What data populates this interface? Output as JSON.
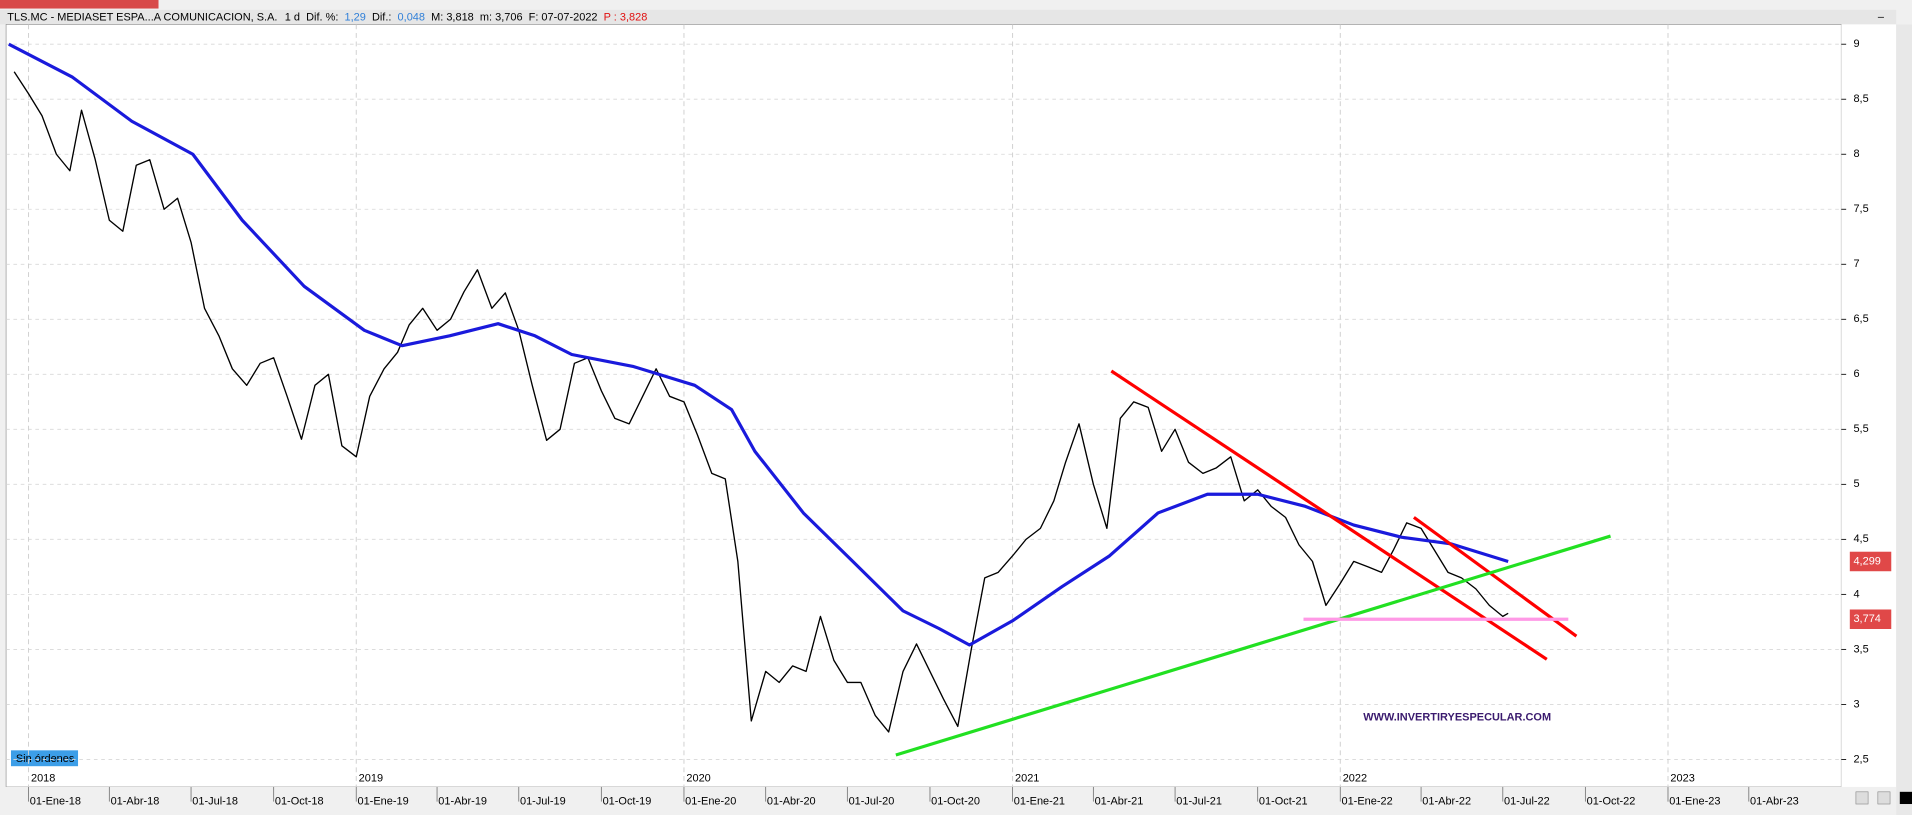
{
  "chart_data": {
    "type": "line",
    "title": "TLS.MC - MEDIASET ESPA...A COMUNICACION, S.A.",
    "info": [
      {
        "text": "1 d",
        "color": "#000000"
      },
      {
        "text": "Dif. %:",
        "color": "#000000"
      },
      {
        "text": "1,29",
        "color": "#2f7fd8"
      },
      {
        "text": "Dif.:",
        "color": "#000000"
      },
      {
        "text": "0,048",
        "color": "#2f7fd8"
      },
      {
        "text": "M: 3,818",
        "color": "#000000"
      },
      {
        "text": "m: 3,706",
        "color": "#000000"
      },
      {
        "text": "F: 07-07-2022",
        "color": "#000000"
      },
      {
        "text": "P : 3,828",
        "color": "#e01010"
      }
    ],
    "watermark": "WWW.INVERTIRYESPECULAR.COM",
    "status": "Sin órdenes",
    "xlim": [
      "2017-12-07",
      "2023-07-13"
    ],
    "ylim": [
      2.25,
      9.18
    ],
    "yticks": [
      {
        "value": 2.5,
        "label": "2,5"
      },
      3,
      {
        "value": 3.5,
        "label": "3,5"
      },
      4,
      {
        "value": 4.5,
        "label": "4,5"
      },
      5,
      {
        "value": 5.5,
        "label": "5,5"
      },
      6,
      {
        "value": 6.5,
        "label": "6,5"
      },
      7,
      {
        "value": 7.5,
        "label": "7,5"
      },
      8,
      {
        "value": 8.5,
        "label": "8,5"
      },
      9
    ],
    "xticks": [
      {
        "value": "2018-01-01",
        "label": "01-Ene-18"
      },
      {
        "value": "2018-04-01",
        "label": "01-Abr-18"
      },
      {
        "value": "2018-07-01",
        "label": "01-Jul-18"
      },
      {
        "value": "2018-10-01",
        "label": "01-Oct-18"
      },
      {
        "value": "2019-01-01",
        "label": "01-Ene-19"
      },
      {
        "value": "2019-04-01",
        "label": "01-Abr-19"
      },
      {
        "value": "2019-07-01",
        "label": "01-Jul-19"
      },
      {
        "value": "2019-10-01",
        "label": "01-Oct-19"
      },
      {
        "value": "2020-01-01",
        "label": "01-Ene-20"
      },
      {
        "value": "2020-04-01",
        "label": "01-Abr-20"
      },
      {
        "value": "2020-07-01",
        "label": "01-Jul-20"
      },
      {
        "value": "2020-10-01",
        "label": "01-Oct-20"
      },
      {
        "value": "2021-01-01",
        "label": "01-Ene-21"
      },
      {
        "value": "2021-04-01",
        "label": "01-Abr-21"
      },
      {
        "value": "2021-07-01",
        "label": "01-Jul-21"
      },
      {
        "value": "2021-10-01",
        "label": "01-Oct-21"
      },
      {
        "value": "2022-01-01",
        "label": "01-Ene-22"
      },
      {
        "value": "2022-04-01",
        "label": "01-Abr-22"
      },
      {
        "value": "2022-07-01",
        "label": "01-Jul-22"
      },
      {
        "value": "2022-10-01",
        "label": "01-Oct-22"
      },
      {
        "value": "2023-01-01",
        "label": "01-Ene-23"
      },
      {
        "value": "2023-04-01",
        "label": "01-Abr-23"
      }
    ],
    "year_ticks": [
      {
        "value": "2018-01-01",
        "label": "2018"
      },
      {
        "value": "2019-01-01",
        "label": "2019"
      },
      {
        "value": "2020-01-01",
        "label": "2020"
      },
      {
        "value": "2021-01-01",
        "label": "2021"
      },
      {
        "value": "2022-01-01",
        "label": "2022"
      },
      {
        "value": "2023-01-01",
        "label": "2023"
      }
    ],
    "grid": true,
    "series": [
      {
        "color": "#000000",
        "x": [
          "2017-12-16",
          "2018-01-01",
          "2018-01-16",
          "2018-02-01",
          "2018-02-16",
          "2018-03-01",
          "2018-03-16",
          "2018-04-01",
          "2018-04-16",
          "2018-05-01",
          "2018-05-16",
          "2018-06-01",
          "2018-06-16",
          "2018-07-01",
          "2018-07-16",
          "2018-08-01",
          "2018-08-16",
          "2018-09-01",
          "2018-09-16",
          "2018-10-01",
          "2018-10-16",
          "2018-11-01",
          "2018-11-16",
          "2018-12-01",
          "2018-12-16",
          "2019-01-01",
          "2019-01-16",
          "2019-02-01",
          "2019-02-16",
          "2019-03-01",
          "2019-03-16",
          "2019-04-01",
          "2019-04-16",
          "2019-05-01",
          "2019-05-16",
          "2019-06-01",
          "2019-06-16",
          "2019-07-01",
          "2019-07-16",
          "2019-08-01",
          "2019-08-16",
          "2019-09-01",
          "2019-09-16",
          "2019-10-01",
          "2019-10-16",
          "2019-11-01",
          "2019-11-16",
          "2019-12-01",
          "2019-12-16",
          "2020-01-01",
          "2020-01-16",
          "2020-02-01",
          "2020-02-16",
          "2020-03-01",
          "2020-03-16",
          "2020-04-01",
          "2020-04-16",
          "2020-05-01",
          "2020-05-16",
          "2020-06-01",
          "2020-06-16",
          "2020-07-01",
          "2020-07-16",
          "2020-08-01",
          "2020-08-16",
          "2020-09-01",
          "2020-09-16",
          "2020-10-01",
          "2020-10-16",
          "2020-11-01",
          "2020-11-16",
          "2020-12-01",
          "2020-12-16",
          "2021-01-01",
          "2021-01-16",
          "2021-02-01",
          "2021-02-16",
          "2021-03-01",
          "2021-03-16",
          "2021-04-01",
          "2021-04-16",
          "2021-05-01",
          "2021-05-16",
          "2021-06-01",
          "2021-06-16",
          "2021-07-01",
          "2021-07-16",
          "2021-08-01",
          "2021-08-16",
          "2021-09-01",
          "2021-09-16",
          "2021-10-01",
          "2021-10-16",
          "2021-11-01",
          "2021-11-16",
          "2021-12-01",
          "2021-12-16",
          "2022-01-01",
          "2022-01-16",
          "2022-02-01",
          "2022-02-16",
          "2022-03-01",
          "2022-03-16",
          "2022-04-01",
          "2022-04-16",
          "2022-05-01",
          "2022-05-16",
          "2022-06-01",
          "2022-06-16",
          "2022-07-01",
          "2022-07-07"
        ],
        "values": [
          8.75,
          8.55,
          8.35,
          8.0,
          7.85,
          8.4,
          7.96,
          7.4,
          7.3,
          7.9,
          7.95,
          7.5,
          7.6,
          7.2,
          6.6,
          6.35,
          6.05,
          5.9,
          6.1,
          6.15,
          5.8,
          5.41,
          5.9,
          6.0,
          5.35,
          5.25,
          5.8,
          6.05,
          6.2,
          6.45,
          6.6,
          6.4,
          6.5,
          6.75,
          6.95,
          6.6,
          6.74,
          6.4,
          5.9,
          5.4,
          5.5,
          6.1,
          6.15,
          5.85,
          5.6,
          5.55,
          5.8,
          6.05,
          5.8,
          5.75,
          5.45,
          5.1,
          5.05,
          4.3,
          2.85,
          3.3,
          3.2,
          3.35,
          3.3,
          3.8,
          3.4,
          3.2,
          3.2,
          2.9,
          2.75,
          3.3,
          3.55,
          3.3,
          3.05,
          2.8,
          3.5,
          4.15,
          4.2,
          4.35,
          4.5,
          4.6,
          4.85,
          5.2,
          5.55,
          5.0,
          4.6,
          5.6,
          5.75,
          5.7,
          5.3,
          5.5,
          5.2,
          5.1,
          5.15,
          5.25,
          4.85,
          4.95,
          4.8,
          4.7,
          4.45,
          4.3,
          3.9,
          4.1,
          4.3,
          4.25,
          4.2,
          4.4,
          4.65,
          4.6,
          4.4,
          4.2,
          4.15,
          4.05,
          3.9,
          3.8,
          3.828
        ]
      },
      {
        "color": "#1a1adc",
        "x": [
          "2017-12-10",
          "2018-02-19",
          "2018-04-26",
          "2018-07-03",
          "2018-08-27",
          "2018-11-04",
          "2019-01-10",
          "2019-02-21",
          "2019-04-15",
          "2019-06-08",
          "2019-07-19",
          "2019-08-29",
          "2019-11-06",
          "2020-01-13",
          "2020-02-23",
          "2020-03-20",
          "2020-05-13",
          "2020-07-07",
          "2020-09-01",
          "2020-10-11",
          "2020-11-14",
          "2021-01-01",
          "2021-02-25",
          "2021-04-19",
          "2021-06-12",
          "2021-08-06",
          "2021-10-01",
          "2021-11-23",
          "2022-01-16",
          "2022-03-10",
          "2022-05-04",
          "2022-07-07"
        ],
        "values": [
          9.0,
          8.7,
          8.3,
          8.0,
          7.4,
          6.8,
          6.4,
          6.26,
          6.35,
          6.46,
          6.35,
          6.18,
          6.07,
          5.9,
          5.68,
          5.3,
          4.74,
          4.3,
          3.85,
          3.69,
          3.54,
          3.76,
          4.07,
          4.35,
          4.74,
          4.91,
          4.91,
          4.8,
          4.63,
          4.52,
          4.46,
          4.299
        ]
      }
    ],
    "lines": [
      {
        "color": "#ff0000",
        "x": [
          "2021-04-21",
          "2022-08-19"
        ],
        "values": [
          6.03,
          3.41
        ]
      },
      {
        "color": "#ff0000",
        "x": [
          "2022-03-24",
          "2022-09-21"
        ],
        "values": [
          4.7,
          3.62
        ]
      },
      {
        "color": "#22e022",
        "x": [
          "2020-08-24",
          "2022-10-29"
        ],
        "values": [
          2.54,
          4.53
        ]
      },
      {
        "color": "#ff99e6",
        "x": [
          "2021-11-21",
          "2022-09-12"
        ],
        "values": [
          3.774,
          3.774
        ]
      }
    ],
    "price_labels": [
      {
        "value": 4.299,
        "label": "4,299",
        "color": "#e04848"
      },
      {
        "value": 3.774,
        "label": "3,774",
        "color": "#e04848"
      }
    ]
  }
}
